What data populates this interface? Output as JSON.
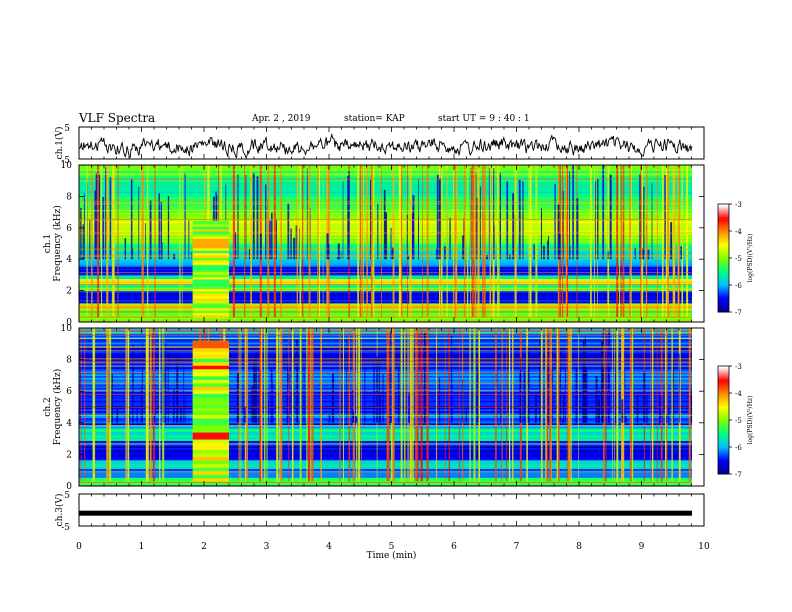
{
  "header": {
    "title": "VLF Spectra",
    "date": "Apr. 2 , 2019",
    "station": "station= KAP",
    "start": "start UT = 9 : 40 : 1"
  },
  "chart_data": [
    {
      "type": "line",
      "name": "ch1-waveform",
      "ylabel": "ch.1(V)",
      "ylim": [
        -5,
        5
      ],
      "yticks": [
        "5",
        "-5"
      ],
      "xlim": [
        0,
        10
      ]
    },
    {
      "type": "heatmap",
      "name": "ch1-spectrogram",
      "ylabel": "ch.1 Frequency (kHz)",
      "ylim": [
        0,
        10
      ],
      "yticks": [
        "0",
        "2",
        "4",
        "6",
        "8",
        "10"
      ],
      "xlim": [
        0,
        10
      ],
      "colorbar": {
        "label": "log(PSD)(V²/Hz)",
        "range": [
          -7,
          -3
        ],
        "ticks": [
          "-3",
          "-4",
          "-5",
          "-6",
          "-7"
        ]
      },
      "burst": {
        "x_start_min": 1.82,
        "x_end_min": 2.4
      }
    },
    {
      "type": "heatmap",
      "name": "ch2-spectrogram",
      "ylabel": "ch.2 Frequency (kHz)",
      "ylim": [
        0,
        10
      ],
      "yticks": [
        "0",
        "2",
        "4",
        "6",
        "8",
        "10"
      ],
      "xlim": [
        0,
        10
      ],
      "colorbar": {
        "label": "log(PSD)(V²/Hz)",
        "range": [
          -7,
          -3
        ],
        "ticks": [
          "-3",
          "-4",
          "-5",
          "-6",
          "-7"
        ]
      },
      "burst": {
        "x_start_min": 1.82,
        "x_end_min": 2.4
      }
    },
    {
      "type": "line",
      "name": "ch3-waveform",
      "ylabel": "ch.3(V)",
      "ylim": [
        -5,
        5
      ],
      "yticks": [
        "5",
        "-5"
      ],
      "xlim": [
        0,
        10
      ],
      "constant_value": -1
    }
  ],
  "xaxis": {
    "label": "Time (min)",
    "ticks": [
      "0",
      "1",
      "2",
      "3",
      "4",
      "5",
      "6",
      "7",
      "8",
      "9",
      "10"
    ]
  },
  "colors": {
    "cmap": [
      "#00008b",
      "#0000ff",
      "#00bfff",
      "#00ff7f",
      "#7fff00",
      "#ffff00",
      "#ff8c00",
      "#ff0000",
      "#ffffff"
    ]
  }
}
